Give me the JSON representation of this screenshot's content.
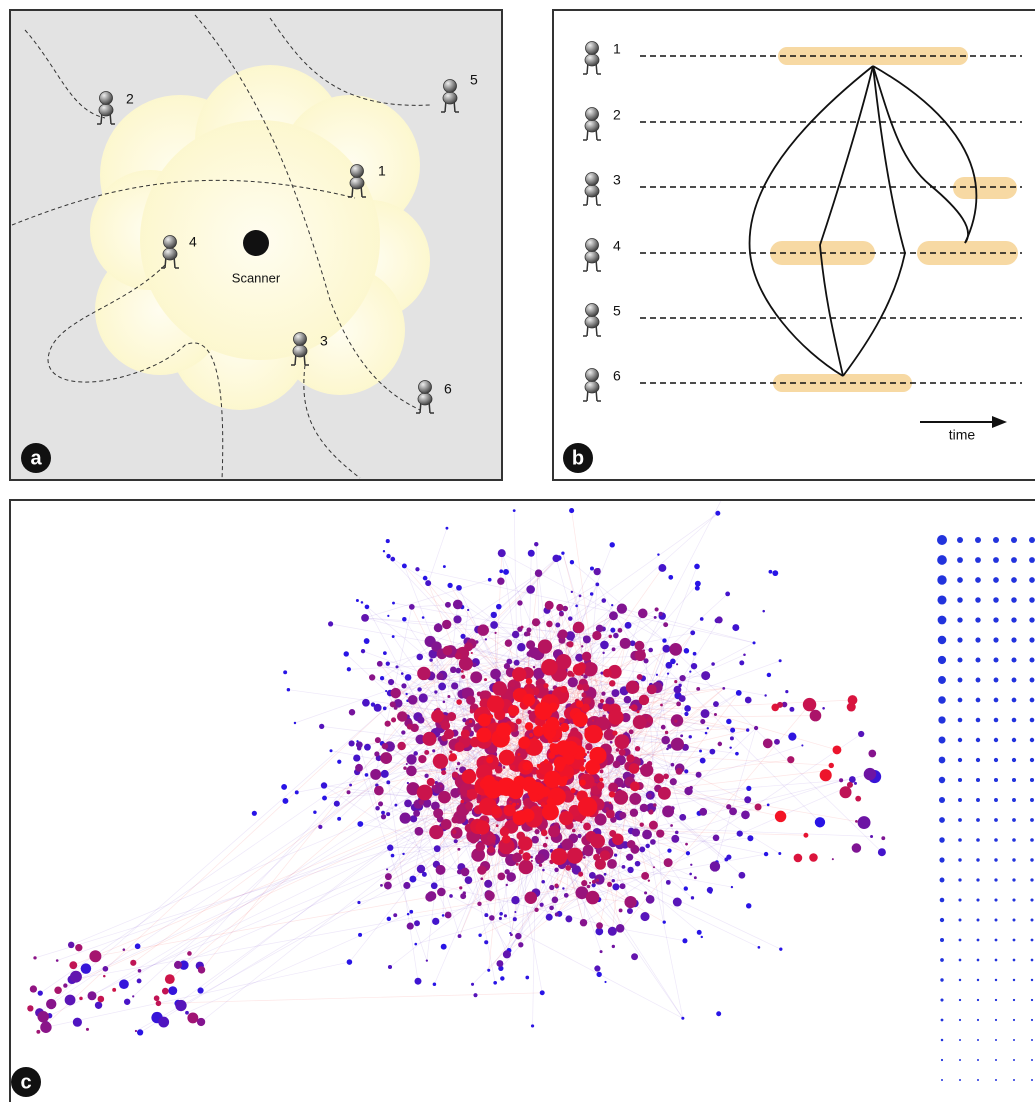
{
  "panel_a": {
    "label": "a",
    "scanner": "Scanner",
    "people": [
      "1",
      "2",
      "3",
      "4",
      "5",
      "6"
    ]
  },
  "panel_b": {
    "label": "b",
    "rows": [
      "1",
      "2",
      "3",
      "4",
      "5",
      "6"
    ],
    "time": "time"
  },
  "panel_c": {
    "label": "c"
  }
}
